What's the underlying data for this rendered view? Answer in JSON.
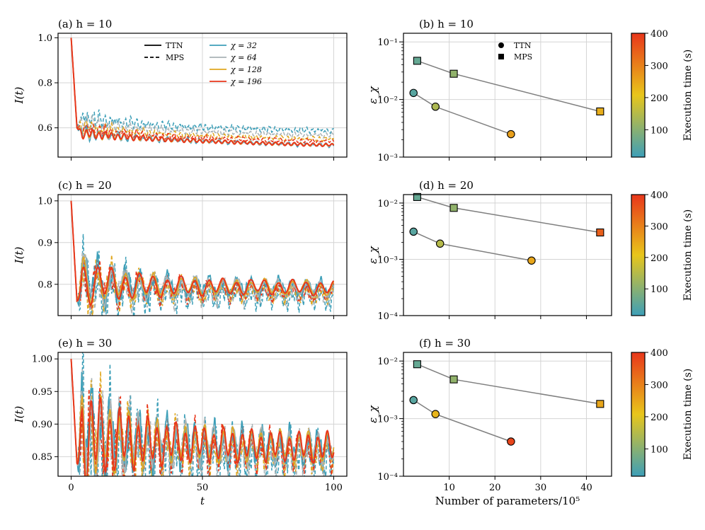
{
  "left_panels": [
    {
      "id": "a",
      "title": "(a) h = 10",
      "ylabel": "I(t)",
      "xlim": [
        -5,
        105
      ],
      "ylim": [
        0.47,
        1.02
      ],
      "yticks": [
        0.6,
        0.8,
        1.0
      ],
      "ytick_labels": [
        "0.6",
        "0.8",
        "1.0"
      ],
      "amp": 0.012,
      "period": 2.4,
      "dip": 0.6,
      "tail_ttn": [
        0.58,
        0.565,
        0.553,
        0.545,
        0.538,
        0.532,
        0.527,
        0.523
      ],
      "tail_mps": [
        0.6,
        0.575,
        0.56,
        0.55,
        0.545,
        0.54,
        0.535,
        0.532
      ],
      "offsets_mps": [
        0.055,
        0.035,
        0.018,
        0.008
      ]
    },
    {
      "id": "c",
      "title": "(c) h = 20",
      "ylabel": "I(t)",
      "xlim": [
        -5,
        105
      ],
      "ylim": [
        0.725,
        1.015
      ],
      "yticks": [
        0.8,
        0.9,
        1.0
      ],
      "ytick_labels": [
        "0.8",
        "0.9",
        "1.0"
      ],
      "amp": 0.03,
      "period": 5.3,
      "dip": 0.76,
      "tail_ttn": [
        0.81,
        0.8,
        0.796,
        0.795,
        0.794,
        0.794,
        0.793,
        0.79
      ],
      "tail_mps": [
        0.808,
        0.798,
        0.792,
        0.788,
        0.786,
        0.784,
        0.782,
        0.78
      ],
      "offsets_mps": [
        -0.012,
        -0.006,
        -0.003,
        -0.001
      ]
    },
    {
      "id": "e",
      "title": "(e) h = 30",
      "ylabel": "I(t)",
      "xlabel": "t",
      "xlim": [
        -5,
        105
      ],
      "ylim": [
        0.82,
        1.01
      ],
      "yticks": [
        0.85,
        0.9,
        0.95,
        1.0
      ],
      "ytick_labels": [
        "0.85",
        "0.90",
        "0.95",
        "1.00"
      ],
      "amp": 0.04,
      "period": 3.6,
      "dip": 0.84,
      "tail_ttn": [
        0.885,
        0.878,
        0.872,
        0.87,
        0.868,
        0.866,
        0.865,
        0.865
      ],
      "tail_mps": [
        0.88,
        0.873,
        0.867,
        0.864,
        0.862,
        0.86,
        0.858,
        0.858
      ],
      "offsets_mps": [
        -0.01,
        -0.005,
        -0.002,
        -0.001
      ]
    }
  ],
  "left_xticks": [
    0,
    50,
    100
  ],
  "left_xtick_labels": [
    "0",
    "50",
    "100"
  ],
  "legend_methods": [
    {
      "label": "TTN",
      "style": "solid"
    },
    {
      "label": "MPS",
      "style": "dashed"
    }
  ],
  "legend_bonds": [
    {
      "label": "χ = 32",
      "color": "#3d9fb8"
    },
    {
      "label": "χ = 64",
      "color": "#a9b3b6"
    },
    {
      "label": "χ = 128",
      "color": "#e0a71f"
    },
    {
      "label": "χ = 196",
      "color": "#e8361b"
    }
  ],
  "right_panels": [
    {
      "id": "b",
      "title": "(b) h = 10",
      "ylabel": "ε_χ",
      "ylim_log": [
        -3,
        -0.85
      ],
      "ydecades": [
        -3,
        -2,
        -1
      ],
      "ytick_labels": [
        "10⁻³",
        "10⁻²",
        "10⁻¹"
      ],
      "ttn": [
        {
          "x": 2.2,
          "y": 0.013,
          "time": 45
        },
        {
          "x": 7.0,
          "y": 0.0075,
          "time": 140
        },
        {
          "x": 23.5,
          "y": 0.0025,
          "time": 260
        }
      ],
      "mps": [
        {
          "x": 3.0,
          "y": 0.047,
          "time": 60
        },
        {
          "x": 11.0,
          "y": 0.028,
          "time": 110
        },
        {
          "x": 43.0,
          "y": 0.0062,
          "time": 240
        }
      ]
    },
    {
      "id": "d",
      "title": "(d) h = 20",
      "ylabel": "ε_χ",
      "ylim_log": [
        -4,
        -1.85
      ],
      "ydecades": [
        -4,
        -3,
        -2
      ],
      "ytick_labels": [
        "10⁻⁴",
        "10⁻³",
        "10⁻²"
      ],
      "ttn": [
        {
          "x": 2.2,
          "y": 0.0031,
          "time": 45
        },
        {
          "x": 8.0,
          "y": 0.0019,
          "time": 150
        },
        {
          "x": 28.0,
          "y": 0.00095,
          "time": 250
        }
      ],
      "mps": [
        {
          "x": 3.0,
          "y": 0.0128,
          "time": 60
        },
        {
          "x": 11.0,
          "y": 0.0082,
          "time": 110
        },
        {
          "x": 43.0,
          "y": 0.003,
          "time": 345
        }
      ]
    },
    {
      "id": "f",
      "title": "(f) h = 30",
      "ylabel": "ε_χ",
      "xlabel": "Number of parameters/10⁵",
      "ylim_log": [
        -4,
        -1.85
      ],
      "ydecades": [
        -4,
        -3,
        -2
      ],
      "ytick_labels": [
        "10⁻⁴",
        "10⁻³",
        "10⁻²"
      ],
      "ttn": [
        {
          "x": 2.2,
          "y": 0.0021,
          "time": 45
        },
        {
          "x": 7.0,
          "y": 0.0012,
          "time": 230
        },
        {
          "x": 23.5,
          "y": 0.0004,
          "time": 380
        }
      ],
      "mps": [
        {
          "x": 3.0,
          "y": 0.0088,
          "time": 60
        },
        {
          "x": 11.0,
          "y": 0.0048,
          "time": 110
        },
        {
          "x": 43.0,
          "y": 0.0018,
          "time": 250
        }
      ]
    }
  ],
  "right_xlim": [
    0,
    45.5
  ],
  "right_xticks": [
    10,
    20,
    30,
    40
  ],
  "right_xtick_labels": [
    "10",
    "20",
    "30",
    "40"
  ],
  "legend_markers": [
    {
      "label": "TTN",
      "marker": "circle"
    },
    {
      "label": "MPS",
      "marker": "square"
    }
  ],
  "colorbar": {
    "label": "Execution time (s)",
    "range": [
      15,
      400
    ],
    "ticks": [
      100,
      200,
      300,
      400
    ],
    "tick_labels": [
      "100",
      "200",
      "300",
      "400"
    ],
    "stops": [
      "#3d9fb8",
      "#e8c61b",
      "#e8361b"
    ]
  },
  "chart_data": [
    {
      "type": "line",
      "title": "(a) h = 10",
      "xlabel": "t",
      "ylabel": "I(t)",
      "xlim": [
        -5,
        105
      ],
      "ylim": [
        0.47,
        1.02
      ],
      "series": [
        {
          "name": "TTN χ = 196",
          "x": [
            0,
            2,
            5,
            10,
            25,
            50,
            75,
            100
          ],
          "values": [
            1.0,
            0.62,
            0.64,
            0.58,
            0.56,
            0.54,
            0.53,
            0.52
          ]
        },
        {
          "name": "MPS χ = 32",
          "x": [
            0,
            2,
            5,
            10,
            25,
            50,
            75,
            100
          ],
          "values": [
            1.0,
            0.66,
            0.69,
            0.64,
            0.62,
            0.61,
            0.6,
            0.59
          ]
        }
      ]
    },
    {
      "type": "line",
      "title": "(c) h = 20",
      "xlabel": "t",
      "ylabel": "I(t)",
      "xlim": [
        -5,
        105
      ],
      "ylim": [
        0.725,
        1.015
      ],
      "series": [
        {
          "name": "TTN χ = 196",
          "x": [
            0,
            3,
            7,
            25,
            50,
            75,
            100
          ],
          "values": [
            1.0,
            0.76,
            0.85,
            0.81,
            0.8,
            0.79,
            0.79
          ]
        }
      ]
    },
    {
      "type": "line",
      "title": "(e) h = 30",
      "xlabel": "t",
      "ylabel": "I(t)",
      "xlim": [
        -5,
        105
      ],
      "ylim": [
        0.82,
        1.01
      ],
      "series": [
        {
          "name": "TTN χ = 196",
          "x": [
            0,
            2,
            6,
            25,
            50,
            75,
            100
          ],
          "values": [
            1.0,
            0.84,
            0.94,
            0.88,
            0.87,
            0.86,
            0.87
          ]
        }
      ]
    },
    {
      "type": "scatter",
      "title": "(b) h = 10",
      "xlabel": "Number of parameters/10⁵",
      "ylabel": "ε_χ",
      "log_y": true,
      "series": [
        {
          "name": "TTN",
          "x": [
            2.2,
            7.0,
            23.5
          ],
          "values": [
            0.013,
            0.0075,
            0.0025
          ]
        },
        {
          "name": "MPS",
          "x": [
            3.0,
            11.0,
            43.0
          ],
          "values": [
            0.047,
            0.028,
            0.0062
          ]
        }
      ]
    },
    {
      "type": "scatter",
      "title": "(d) h = 20",
      "xlabel": "Number of parameters/10⁵",
      "ylabel": "ε_χ",
      "log_y": true,
      "series": [
        {
          "name": "TTN",
          "x": [
            2.2,
            8.0,
            28.0
          ],
          "values": [
            0.0031,
            0.0019,
            0.00095
          ]
        },
        {
          "name": "MPS",
          "x": [
            3.0,
            11.0,
            43.0
          ],
          "values": [
            0.0128,
            0.0082,
            0.003
          ]
        }
      ]
    },
    {
      "type": "scatter",
      "title": "(f) h = 30",
      "xlabel": "Number of parameters/10⁵",
      "ylabel": "ε_χ",
      "log_y": true,
      "series": [
        {
          "name": "TTN",
          "x": [
            2.2,
            7.0,
            23.5
          ],
          "values": [
            0.0021,
            0.0012,
            0.0004
          ]
        },
        {
          "name": "MPS",
          "x": [
            3.0,
            11.0,
            43.0
          ],
          "values": [
            0.0088,
            0.0048,
            0.0018
          ]
        }
      ]
    }
  ]
}
